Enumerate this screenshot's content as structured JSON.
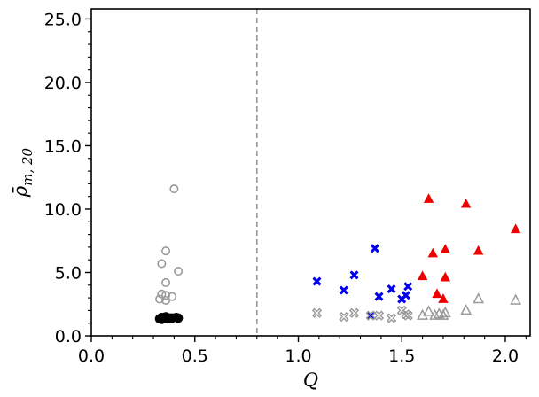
{
  "chart_data": {
    "type": "scatter",
    "xlabel": "Q",
    "ylabel": "ρ̄ m,20",
    "ylabel_main": "ρ̄",
    "ylabel_sub": "m, 20",
    "xlim": [
      0.0,
      2.12
    ],
    "ylim": [
      0.0,
      25.8
    ],
    "x_ticks": [
      0.0,
      0.5,
      1.0,
      1.5,
      2.0
    ],
    "x_tick_labels": [
      "0.0",
      "0.5",
      "1.0",
      "1.5",
      "2.0"
    ],
    "y_ticks": [
      0.0,
      5.0,
      10.0,
      15.0,
      20.0,
      25.0
    ],
    "y_tick_labels": [
      "0.0",
      "5.0",
      "10.0",
      "15.0",
      "20.0",
      "25.0"
    ],
    "grid": false,
    "reference_line": {
      "x": 0.8,
      "style": "dashed",
      "color": "#999999"
    },
    "series": [
      {
        "marker": "circle-open",
        "color": "#999999",
        "points": [
          [
            0.4,
            11.6
          ],
          [
            0.36,
            6.7
          ],
          [
            0.42,
            5.1
          ],
          [
            0.34,
            5.7
          ],
          [
            0.36,
            4.2
          ],
          [
            0.34,
            3.3
          ],
          [
            0.36,
            3.2
          ],
          [
            0.39,
            3.1
          ],
          [
            0.33,
            2.9
          ],
          [
            0.36,
            2.8
          ]
        ]
      },
      {
        "marker": "circle-filled",
        "color": "#000000",
        "points": [
          [
            0.33,
            1.35
          ],
          [
            0.34,
            1.45
          ],
          [
            0.35,
            1.4
          ],
          [
            0.36,
            1.5
          ],
          [
            0.37,
            1.35
          ],
          [
            0.38,
            1.4
          ],
          [
            0.39,
            1.4
          ],
          [
            0.41,
            1.45
          ],
          [
            0.42,
            1.4
          ],
          [
            0.34,
            1.3
          ]
        ]
      },
      {
        "marker": "x-filled",
        "color": "#0000ee",
        "points": [
          [
            1.09,
            4.3
          ],
          [
            1.22,
            3.6
          ],
          [
            1.27,
            4.8
          ],
          [
            1.37,
            6.9
          ],
          [
            1.39,
            3.1
          ],
          [
            1.35,
            1.6
          ],
          [
            1.45,
            3.7
          ],
          [
            1.5,
            2.9
          ],
          [
            1.52,
            3.2
          ],
          [
            1.53,
            3.9
          ]
        ]
      },
      {
        "marker": "x-open",
        "color": "#999999",
        "points": [
          [
            1.09,
            1.8
          ],
          [
            1.22,
            1.5
          ],
          [
            1.27,
            1.8
          ],
          [
            1.35,
            1.6
          ],
          [
            1.39,
            1.6
          ],
          [
            1.45,
            1.4
          ],
          [
            1.5,
            2.0
          ],
          [
            1.52,
            1.7
          ],
          [
            1.53,
            1.6
          ]
        ]
      },
      {
        "marker": "triangle-filled",
        "color": "#ee0000",
        "points": [
          [
            1.63,
            10.8
          ],
          [
            1.81,
            10.4
          ],
          [
            2.05,
            8.4
          ],
          [
            1.71,
            6.8
          ],
          [
            1.87,
            6.7
          ],
          [
            1.65,
            6.5
          ],
          [
            1.6,
            4.7
          ],
          [
            1.71,
            4.6
          ],
          [
            1.67,
            3.3
          ],
          [
            1.7,
            2.9
          ]
        ]
      },
      {
        "marker": "triangle-open",
        "color": "#999999",
        "points": [
          [
            1.6,
            1.6
          ],
          [
            1.63,
            1.9
          ],
          [
            1.66,
            1.6
          ],
          [
            1.68,
            1.7
          ],
          [
            1.71,
            1.8
          ],
          [
            1.81,
            2.0
          ],
          [
            1.87,
            2.9
          ],
          [
            2.05,
            2.8
          ],
          [
            1.7,
            1.6
          ]
        ]
      }
    ]
  }
}
